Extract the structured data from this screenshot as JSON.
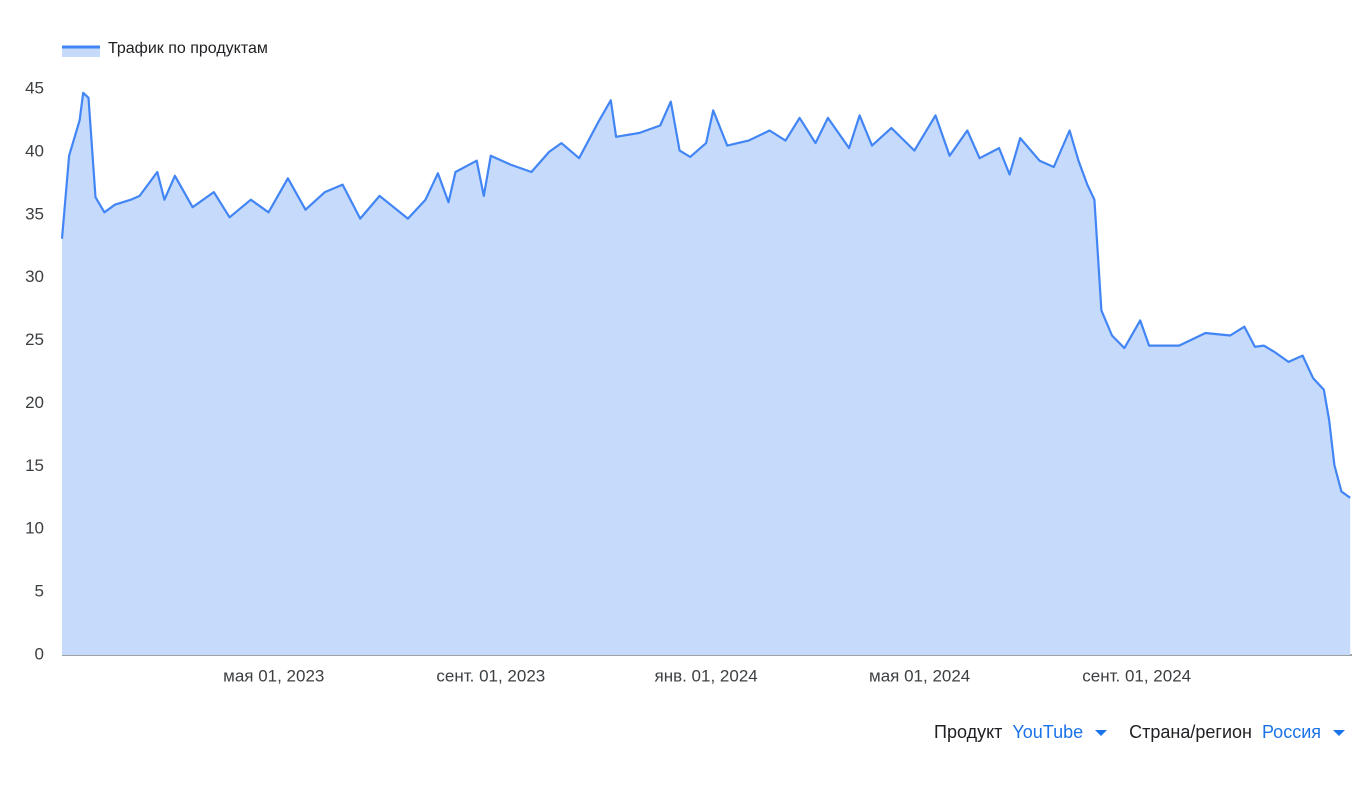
{
  "chart_data": {
    "type": "area",
    "x": [
      "2023-01-01",
      "2023-01-05",
      "2023-01-11",
      "2023-01-13",
      "2023-01-16",
      "2023-01-20",
      "2023-01-25",
      "2023-01-31",
      "2023-02-09",
      "2023-02-14",
      "2023-02-24",
      "2023-02-28",
      "2023-03-06",
      "2023-03-16",
      "2023-03-28",
      "2023-04-06",
      "2023-04-18",
      "2023-04-28",
      "2023-05-09",
      "2023-05-19",
      "2023-05-30",
      "2023-06-09",
      "2023-06-19",
      "2023-06-30",
      "2023-07-16",
      "2023-07-26",
      "2023-08-02",
      "2023-08-08",
      "2023-08-12",
      "2023-08-24",
      "2023-08-28",
      "2023-09-01",
      "2023-09-12",
      "2023-09-24",
      "2023-10-04",
      "2023-10-11",
      "2023-10-21",
      "2023-11-01",
      "2023-11-08",
      "2023-11-11",
      "2023-11-24",
      "2023-12-06",
      "2023-12-12",
      "2023-12-17",
      "2023-12-23",
      "2024-01-01",
      "2024-01-05",
      "2024-01-13",
      "2024-01-25",
      "2024-02-06",
      "2024-02-15",
      "2024-02-23",
      "2024-03-03",
      "2024-03-10",
      "2024-03-22",
      "2024-03-28",
      "2024-04-04",
      "2024-04-15",
      "2024-04-28",
      "2024-05-10",
      "2024-05-18",
      "2024-05-28",
      "2024-06-04",
      "2024-06-15",
      "2024-06-21",
      "2024-06-27",
      "2024-07-08",
      "2024-07-16",
      "2024-07-25",
      "2024-07-30",
      "2024-08-04",
      "2024-08-08",
      "2024-08-12",
      "2024-08-18",
      "2024-08-25",
      "2024-09-03",
      "2024-09-08",
      "2024-09-25",
      "2024-10-10",
      "2024-10-24",
      "2024-11-01",
      "2024-11-07",
      "2024-11-12",
      "2024-11-18",
      "2024-11-26",
      "2024-12-04",
      "2024-12-10",
      "2024-12-16",
      "2024-12-19",
      "2024-12-22",
      "2024-12-26",
      "2024-12-31"
    ],
    "series": [
      {
        "name": "Трафик по продуктам",
        "color": "#4285f4",
        "fill": "#c6dafc",
        "values": [
          33.1,
          39.7,
          42.5,
          44.7,
          44.3,
          36.4,
          35.2,
          35.8,
          36.2,
          36.5,
          38.4,
          36.2,
          38.1,
          35.6,
          36.8,
          34.8,
          36.2,
          35.2,
          37.9,
          35.4,
          36.8,
          37.4,
          34.7,
          36.5,
          34.7,
          36.2,
          38.3,
          36.0,
          38.4,
          39.3,
          36.5,
          39.7,
          39.0,
          38.4,
          40.0,
          40.7,
          39.5,
          42.4,
          44.1,
          41.2,
          41.5,
          42.1,
          44.0,
          40.1,
          39.6,
          40.7,
          43.3,
          40.5,
          40.9,
          41.7,
          40.9,
          42.7,
          40.7,
          42.7,
          40.3,
          42.9,
          40.5,
          41.9,
          40.1,
          42.9,
          39.7,
          41.7,
          39.5,
          40.3,
          38.2,
          41.1,
          39.3,
          38.8,
          41.7,
          39.3,
          37.4,
          36.2,
          27.4,
          25.4,
          24.4,
          26.6,
          24.6,
          24.6,
          25.6,
          25.4,
          26.1,
          24.5,
          24.6,
          24.1,
          23.3,
          23.8,
          22.0,
          21.1,
          18.7,
          15.1,
          13.0,
          12.5
        ]
      }
    ],
    "xlim": [
      "2023-01-01",
      "2025-01-01"
    ],
    "xticks": [
      {
        "value": "2023-05-01",
        "label": "мая 01, 2023"
      },
      {
        "value": "2023-09-01",
        "label": "сент. 01, 2023"
      },
      {
        "value": "2024-01-01",
        "label": "янв. 01, 2024"
      },
      {
        "value": "2024-05-01",
        "label": "мая 01, 2024"
      },
      {
        "value": "2024-09-01",
        "label": "сент. 01, 2024"
      }
    ],
    "ylim": [
      0,
      45
    ],
    "yticks": [
      0,
      5,
      10,
      15,
      20,
      25,
      30,
      35,
      40,
      45
    ],
    "grid": false
  },
  "filters": [
    {
      "label": "Продукт",
      "value": "YouTube"
    },
    {
      "label": "Страна/регион",
      "value": "Россия"
    }
  ]
}
